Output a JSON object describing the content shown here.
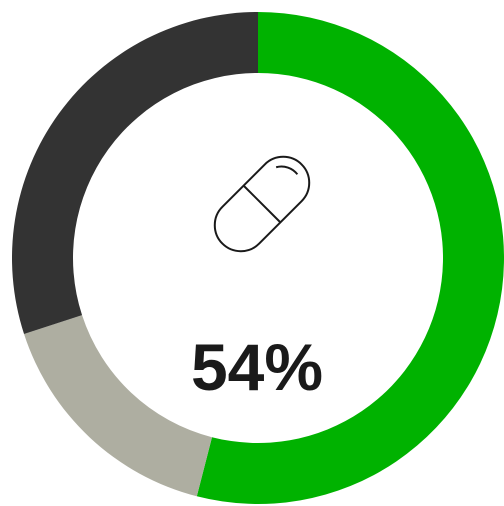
{
  "chart_data": {
    "type": "pie",
    "style": "donut",
    "center_label": "54%",
    "center_icon": "pill-capsule-icon",
    "slices": [
      {
        "value": 54,
        "color": "#00b200"
      },
      {
        "value": 16,
        "color": "#aeaea1"
      },
      {
        "value": 30,
        "color": "#333333"
      }
    ],
    "start": "top",
    "direction": "clockwise"
  }
}
